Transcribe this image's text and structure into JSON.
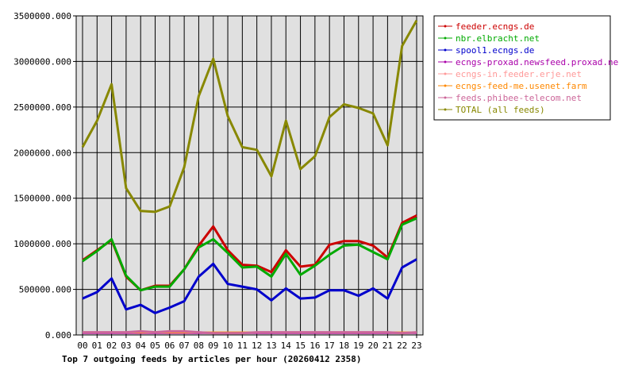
{
  "chart_data": {
    "type": "line",
    "title": "Top 7 outgoing feeds by articles per hour (20260412 2358)",
    "xlabel": "",
    "ylabel": "",
    "ylim": [
      0,
      3500000
    ],
    "yticks": [
      "0.000",
      "500000.000",
      "1000000.000",
      "1500000.000",
      "2000000.000",
      "2500000.000",
      "3000000.000",
      "3500000.000"
    ],
    "ytick_values": [
      0,
      500000,
      1000000,
      1500000,
      2000000,
      2500000,
      3000000,
      3500000
    ],
    "categories": [
      "00",
      "01",
      "02",
      "03",
      "04",
      "05",
      "06",
      "07",
      "08",
      "09",
      "10",
      "11",
      "12",
      "13",
      "14",
      "15",
      "16",
      "17",
      "18",
      "19",
      "20",
      "21",
      "22",
      "23"
    ],
    "grid": true,
    "legend_position": "right",
    "series": [
      {
        "name": "feeder.ecngs.de",
        "color": "#cc0000",
        "width": 3,
        "values": [
          820000,
          930000,
          1040000,
          640000,
          490000,
          540000,
          540000,
          720000,
          980000,
          1190000,
          930000,
          770000,
          760000,
          690000,
          930000,
          750000,
          770000,
          990000,
          1030000,
          1030000,
          980000,
          850000,
          1230000,
          1310000
        ]
      },
      {
        "name": "nbr.elbracht.net",
        "color": "#00aa00",
        "width": 3,
        "values": [
          810000,
          920000,
          1050000,
          650000,
          490000,
          530000,
          530000,
          720000,
          960000,
          1050000,
          900000,
          740000,
          750000,
          640000,
          890000,
          660000,
          760000,
          880000,
          980000,
          990000,
          910000,
          830000,
          1210000,
          1280000
        ]
      },
      {
        "name": "spool1.ecngs.de",
        "color": "#0000cc",
        "width": 3,
        "values": [
          400000,
          470000,
          620000,
          280000,
          330000,
          240000,
          300000,
          370000,
          640000,
          780000,
          560000,
          530000,
          500000,
          380000,
          510000,
          400000,
          410000,
          490000,
          490000,
          430000,
          510000,
          400000,
          740000,
          830000
        ]
      },
      {
        "name": "ecngs-proxad.newsfeed.proxad.net",
        "color": "#aa00aa",
        "width": 2,
        "values": [
          20000,
          20000,
          20000,
          20000,
          20000,
          20000,
          20000,
          20000,
          20000,
          20000,
          20000,
          20000,
          20000,
          20000,
          20000,
          20000,
          20000,
          20000,
          20000,
          20000,
          20000,
          20000,
          20000,
          20000
        ]
      },
      {
        "name": "ecngs-in.feeder.erje.net",
        "color": "#ff9999",
        "width": 2,
        "values": [
          25000,
          25000,
          25000,
          25000,
          25000,
          25000,
          25000,
          25000,
          25000,
          25000,
          25000,
          25000,
          25000,
          25000,
          25000,
          25000,
          25000,
          25000,
          25000,
          25000,
          25000,
          25000,
          25000,
          25000
        ]
      },
      {
        "name": "ecngs-feed-me.usenet.farm",
        "color": "#ff8800",
        "width": 2,
        "values": [
          30000,
          30000,
          30000,
          30000,
          30000,
          30000,
          30000,
          30000,
          30000,
          30000,
          30000,
          30000,
          30000,
          30000,
          30000,
          30000,
          30000,
          30000,
          30000,
          30000,
          30000,
          30000,
          30000,
          30000
        ]
      },
      {
        "name": "feeds.phibee-telecom.net",
        "color": "#cc6699",
        "width": 3,
        "values": [
          30000,
          30000,
          30000,
          30000,
          40000,
          30000,
          40000,
          40000,
          30000,
          20000,
          20000,
          20000,
          30000,
          30000,
          30000,
          30000,
          30000,
          30000,
          30000,
          30000,
          30000,
          30000,
          20000,
          30000
        ]
      },
      {
        "name": "TOTAL (all feeds)",
        "color": "#888800",
        "width": 3,
        "values": [
          2060000,
          2350000,
          2750000,
          1610000,
          1360000,
          1350000,
          1410000,
          1840000,
          2620000,
          3030000,
          2400000,
          2060000,
          2030000,
          1740000,
          2350000,
          1820000,
          1960000,
          2390000,
          2530000,
          2490000,
          2430000,
          2080000,
          3170000,
          3450000
        ]
      }
    ]
  }
}
